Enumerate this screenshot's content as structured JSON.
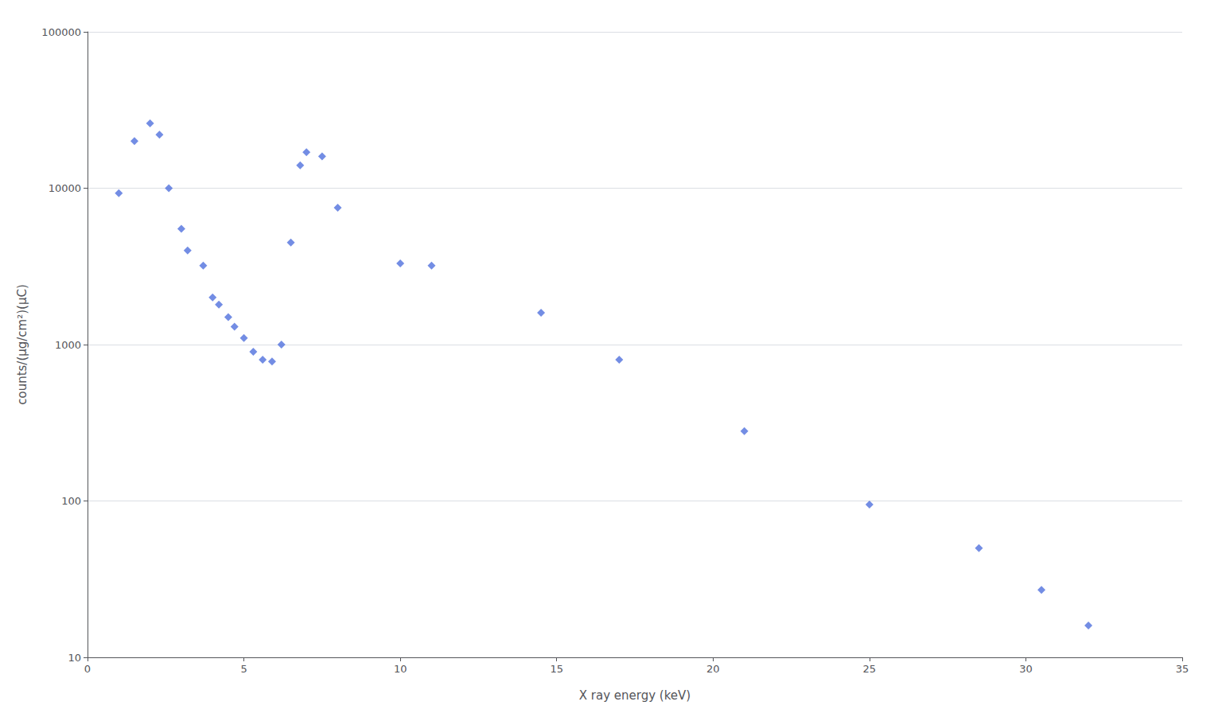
{
  "chart_data": {
    "type": "scatter",
    "x": [
      1.0,
      1.5,
      2.0,
      2.3,
      2.6,
      3.0,
      3.2,
      3.7,
      4.0,
      4.2,
      4.5,
      4.7,
      5.0,
      5.3,
      5.6,
      5.9,
      6.2,
      6.5,
      6.8,
      7.0,
      7.5,
      8.0,
      10.0,
      11.0,
      14.5,
      17.0,
      21.0,
      25.0,
      28.5,
      30.5,
      32.0
    ],
    "values": [
      9300,
      20000,
      26000,
      22000,
      10000,
      5500,
      4000,
      3200,
      2000,
      1800,
      1500,
      1300,
      1100,
      900,
      800,
      780,
      1000,
      4500,
      14000,
      17000,
      16000,
      7500,
      3300,
      3200,
      1600,
      800,
      280,
      95,
      50,
      27,
      16
    ],
    "xlabel": "X ray energy (keV)",
    "ylabel": "counts/(μg/cm²)(μC)",
    "xlim": [
      0,
      35
    ],
    "ylim": [
      10,
      100000
    ],
    "xticks": [
      0,
      5,
      10,
      15,
      20,
      25,
      30,
      35
    ],
    "yticks": [
      10,
      100,
      1000,
      10000,
      100000
    ],
    "log": "y",
    "grid": true,
    "marker": "diamond"
  }
}
